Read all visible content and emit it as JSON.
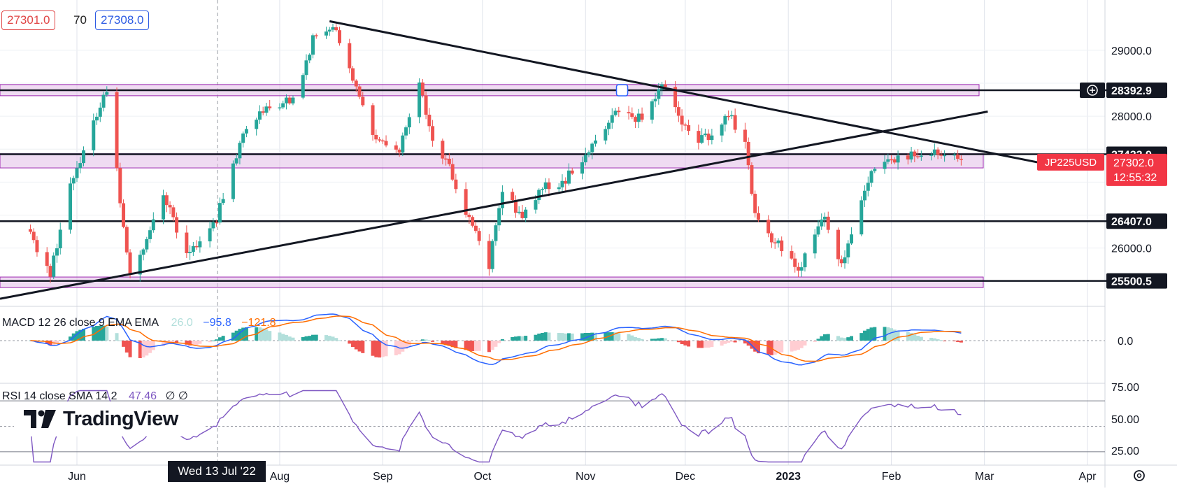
{
  "toolbar": {
    "bid": "27301.0",
    "spread": "70",
    "ask": "27308.0"
  },
  "brand": {
    "name": "TradingView"
  },
  "crosshair": {
    "date_label": "Wed 13 Jul '22"
  },
  "chart_data": {
    "type": "candlestick",
    "symbol": "JP225USD",
    "last_price_label": "27302.0",
    "countdown": "12:55:32",
    "price_axis_ticks": [
      "29000.0",
      "28000.0",
      "26000.0"
    ],
    "y_range": [
      25200,
      29550
    ],
    "x_ticks": [
      "Jun",
      "Aug",
      "Sep",
      "Oct",
      "Nov",
      "Dec",
      "2023",
      "Feb",
      "Mar",
      "Apr"
    ],
    "level_labels": [
      "28392.9",
      "27422.9",
      "26407.0",
      "25500.5"
    ],
    "zones": [
      [
        28310,
        28480
      ],
      [
        27215,
        27430
      ],
      [
        25400,
        25560
      ]
    ],
    "waypoints": [
      [
        "2022-05-18",
        26200
      ],
      [
        "2022-05-24",
        25600
      ],
      [
        "2022-05-30",
        26900
      ],
      [
        "2022-06-08",
        28200
      ],
      [
        "2022-06-10",
        28300
      ],
      [
        "2022-06-17",
        25600
      ],
      [
        "2022-06-22",
        26150
      ],
      [
        "2022-06-27",
        26800
      ],
      [
        "2022-07-04",
        25900
      ],
      [
        "2022-07-13",
        26450
      ],
      [
        "2022-07-22",
        27850
      ],
      [
        "2022-07-29",
        28150
      ],
      [
        "2022-08-05",
        28250
      ],
      [
        "2022-08-11",
        29150
      ],
      [
        "2022-08-17",
        29400
      ],
      [
        "2022-08-22",
        28700
      ],
      [
        "2022-08-30",
        27650
      ],
      [
        "2022-09-06",
        27500
      ],
      [
        "2022-09-12",
        28500
      ],
      [
        "2022-09-15",
        27800
      ],
      [
        "2022-09-22",
        27100
      ],
      [
        "2022-09-27",
        26400
      ],
      [
        "2022-10-03",
        25750
      ],
      [
        "2022-10-07",
        26900
      ],
      [
        "2022-10-13",
        26450
      ],
      [
        "2022-10-19",
        26900
      ],
      [
        "2022-10-25",
        27000
      ],
      [
        "2022-11-02",
        27450
      ],
      [
        "2022-11-10",
        28100
      ],
      [
        "2022-11-18",
        27950
      ],
      [
        "2022-11-24",
        28450
      ],
      [
        "2022-11-28",
        28200
      ],
      [
        "2022-12-02",
        27700
      ],
      [
        "2022-12-08",
        27650
      ],
      [
        "2022-12-14",
        28050
      ],
      [
        "2022-12-19",
        27550
      ],
      [
        "2022-12-22",
        26450
      ],
      [
        "2022-12-28",
        26100
      ],
      [
        "2023-01-04",
        25650
      ],
      [
        "2023-01-09",
        26250
      ],
      [
        "2023-01-12",
        26450
      ],
      [
        "2023-01-17",
        25750
      ],
      [
        "2023-01-20",
        26150
      ],
      [
        "2023-01-25",
        27050
      ],
      [
        "2023-01-31",
        27300
      ],
      [
        "2023-02-06",
        27380
      ],
      [
        "2023-02-10",
        27480
      ],
      [
        "2023-02-16",
        27450
      ],
      [
        "2023-02-22",
        27302
      ]
    ],
    "macd": {
      "legend": "MACD 12 26 close 9 EMA EMA",
      "hist_label": "26.0",
      "macd_label": "−95.8",
      "signal_label": "−121.8",
      "zero_label": "0.0",
      "colors": {
        "macd": "#2962ff",
        "signal": "#ff6d00",
        "hist_up": "#26a69a",
        "hist_down": "#ef5350"
      }
    },
    "rsi": {
      "legend": "RSI 14 close SMA 14 2",
      "value_label": "47.46",
      "extra": "∅ ∅",
      "ticks": [
        "75.00",
        "50.00",
        "25.00"
      ]
    },
    "colors": {
      "up": "#26a69a",
      "down": "#ef5350",
      "zone": "#e1bee7",
      "zone_border": "#9c27b0",
      "tag_red": "#f23645"
    }
  }
}
